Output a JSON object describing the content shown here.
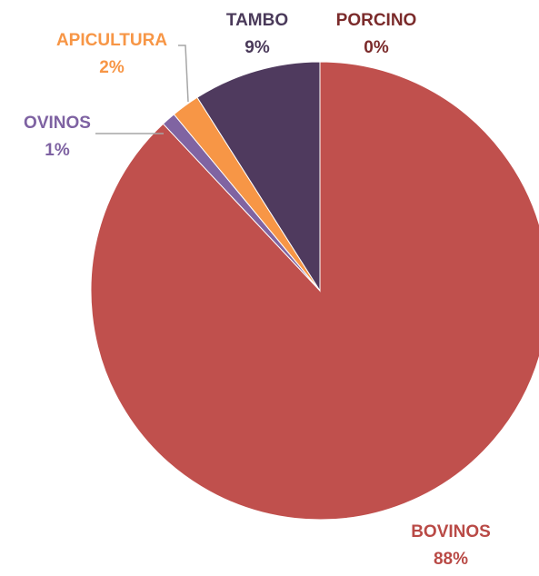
{
  "chart_data": {
    "type": "pie",
    "start_angle_deg": 0,
    "direction": "clockwise",
    "slices": [
      {
        "label": "BOVINOS",
        "value": 88,
        "percent_label": "88%",
        "color": "#C0504D",
        "label_color": "#B94A46"
      },
      {
        "label": "OVINOS",
        "value": 1,
        "percent_label": "1%",
        "color": "#8064A2",
        "label_color": "#7E62A2"
      },
      {
        "label": "APICULTURA",
        "value": 2,
        "percent_label": "2%",
        "color": "#F79646",
        "label_color": "#F79646"
      },
      {
        "label": "TAMBO",
        "value": 9,
        "percent_label": "9%",
        "color": "#4F3A5E",
        "label_color": "#4A3A5A"
      },
      {
        "label": "PORCINO",
        "value": 0,
        "percent_label": "0%",
        "color": "#7B2B2B",
        "label_color": "#7B2B2B"
      }
    ],
    "legend": "none",
    "title": ""
  }
}
